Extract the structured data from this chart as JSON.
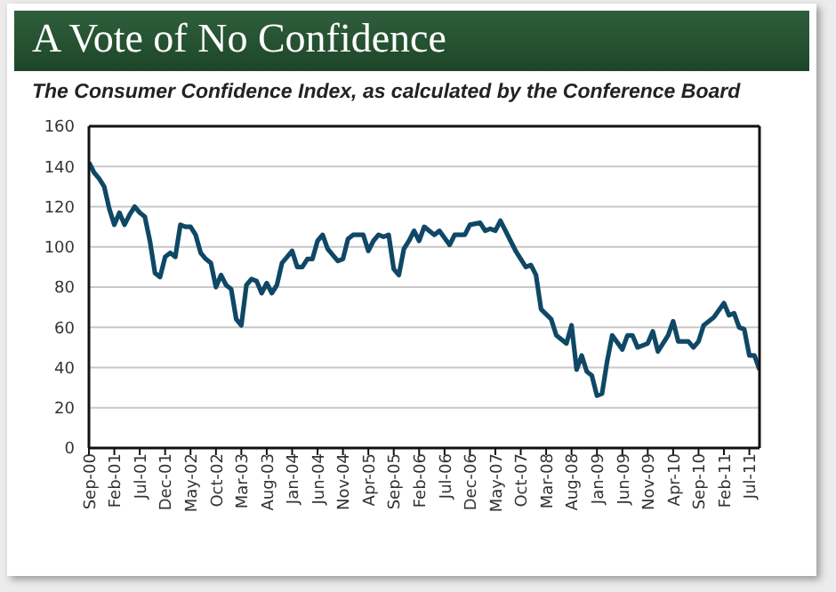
{
  "chart_data": {
    "type": "line",
    "title": "A Vote of No Confidence",
    "subtitle": "The Consumer Confidence Index, as calculated by the Conference Board",
    "x": [
      "2000-09",
      "2000-10",
      "2000-11",
      "2000-12",
      "2001-01",
      "2001-02",
      "2001-03",
      "2001-04",
      "2001-05",
      "2001-06",
      "2001-07",
      "2001-08",
      "2001-09",
      "2001-10",
      "2001-11",
      "2001-12",
      "2002-01",
      "2002-02",
      "2002-03",
      "2002-04",
      "2002-05",
      "2002-06",
      "2002-07",
      "2002-08",
      "2002-09",
      "2002-10",
      "2002-11",
      "2002-12",
      "2003-01",
      "2003-02",
      "2003-03",
      "2003-04",
      "2003-05",
      "2003-06",
      "2003-07",
      "2003-08",
      "2003-09",
      "2003-10",
      "2003-11",
      "2003-12",
      "2004-01",
      "2004-02",
      "2004-03",
      "2004-04",
      "2004-05",
      "2004-06",
      "2004-07",
      "2004-08",
      "2004-09",
      "2004-10",
      "2004-11",
      "2004-12",
      "2005-01",
      "2005-02",
      "2005-03",
      "2005-04",
      "2005-05",
      "2005-06",
      "2005-07",
      "2005-08",
      "2005-09",
      "2005-10",
      "2005-11",
      "2005-12",
      "2006-01",
      "2006-02",
      "2006-03",
      "2006-05",
      "2006-06",
      "2006-08",
      "2006-09",
      "2006-11",
      "2006-12",
      "2007-02",
      "2007-03",
      "2007-04",
      "2007-05",
      "2007-06",
      "2007-08",
      "2007-09",
      "2007-11",
      "2007-12",
      "2008-01",
      "2008-02",
      "2008-04",
      "2008-05",
      "2008-07",
      "2008-08",
      "2008-09",
      "2008-10",
      "2008-11",
      "2008-12",
      "2009-01",
      "2009-02",
      "2009-03",
      "2009-04",
      "2009-06",
      "2009-07",
      "2009-08",
      "2009-09",
      "2009-11",
      "2009-12",
      "2010-01",
      "2010-03",
      "2010-04",
      "2010-05",
      "2010-07",
      "2010-08",
      "2010-09",
      "2010-10",
      "2010-12",
      "2011-02",
      "2011-03",
      "2011-04",
      "2011-05",
      "2011-06",
      "2011-07",
      "2011-08",
      "2011-09"
    ],
    "series": [
      {
        "color": "#0f4866",
        "values": [
          142,
          137,
          134,
          130,
          119,
          111,
          117,
          111,
          116,
          120,
          117,
          115,
          103,
          87,
          85,
          95,
          97,
          95,
          111,
          110,
          110,
          106,
          97,
          94,
          92,
          80,
          86,
          81,
          79,
          64,
          61,
          81,
          84,
          83,
          77,
          82,
          77,
          81,
          92,
          95,
          98,
          90,
          90,
          94,
          94,
          103,
          106,
          99,
          96,
          93,
          94,
          104,
          106,
          106,
          106,
          98,
          103,
          106,
          105,
          106,
          89,
          86,
          99,
          103,
          108,
          103,
          110,
          106,
          108,
          101,
          106,
          106,
          111,
          112,
          108,
          109,
          108,
          113,
          103,
          98,
          90,
          91,
          86,
          69,
          64,
          56,
          52,
          61,
          39,
          46,
          38,
          36,
          26,
          27,
          43,
          56,
          49,
          56,
          56,
          50,
          52,
          58,
          48,
          56,
          63,
          53,
          53,
          50,
          53,
          61,
          65,
          72,
          66,
          67,
          60,
          59,
          46,
          46,
          39
        ]
      }
    ],
    "xlim": [
      "2000-09",
      "2011-09"
    ],
    "xticks": [
      {
        "value": "2000-09",
        "label": "Sep-00"
      },
      {
        "value": "2001-02",
        "label": "Feb-01"
      },
      {
        "value": "2001-07",
        "label": "Jul-01"
      },
      {
        "value": "2001-12",
        "label": "Dec-01"
      },
      {
        "value": "2002-05",
        "label": "May-02"
      },
      {
        "value": "2002-10",
        "label": "Oct-02"
      },
      {
        "value": "2003-03",
        "label": "Mar-03"
      },
      {
        "value": "2003-08",
        "label": "Aug-03"
      },
      {
        "value": "2004-01",
        "label": "Jan-04"
      },
      {
        "value": "2004-06",
        "label": "Jun-04"
      },
      {
        "value": "2004-11",
        "label": "Nov-04"
      },
      {
        "value": "2005-04",
        "label": "Apr-05"
      },
      {
        "value": "2005-09",
        "label": "Sep-05"
      },
      {
        "value": "2006-02",
        "label": "Feb-06"
      },
      {
        "value": "2006-07",
        "label": "Jul-06"
      },
      {
        "value": "2006-12",
        "label": "Dec-06"
      },
      {
        "value": "2007-05",
        "label": "May-07"
      },
      {
        "value": "2007-10",
        "label": "Oct-07"
      },
      {
        "value": "2008-03",
        "label": "Mar-08"
      },
      {
        "value": "2008-08",
        "label": "Aug-08"
      },
      {
        "value": "2009-01",
        "label": "Jan-09"
      },
      {
        "value": "2009-06",
        "label": "Jun-09"
      },
      {
        "value": "2009-11",
        "label": "Nov-09"
      },
      {
        "value": "2010-04",
        "label": "Apr-10"
      },
      {
        "value": "2010-09",
        "label": "Sep-10"
      },
      {
        "value": "2011-02",
        "label": "Feb-11"
      },
      {
        "value": "2011-07",
        "label": "Jul-11"
      }
    ],
    "ylim": [
      0,
      160
    ],
    "yticks": [
      0,
      20,
      40,
      60,
      80,
      100,
      120,
      140,
      160
    ],
    "grid": "y",
    "legend": false,
    "marker": "none",
    "line_style": "solid"
  }
}
